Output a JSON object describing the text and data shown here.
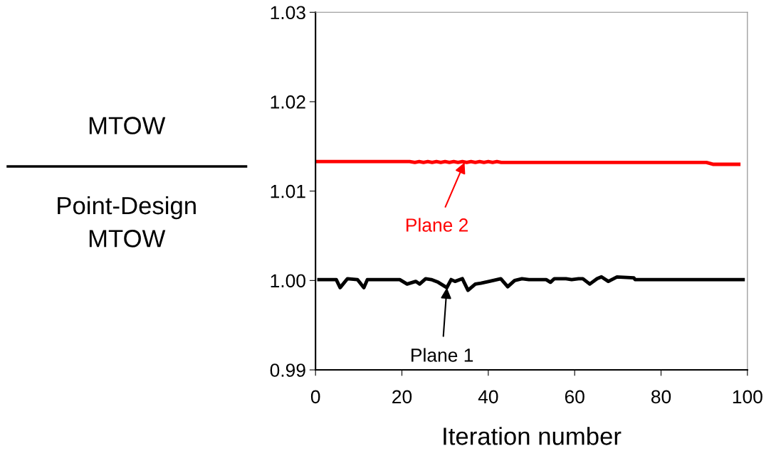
{
  "chart_data": {
    "type": "line",
    "xlabel": "Iteration number",
    "ylabel": "MTOW\nPoint-Design\nMTOW",
    "xlim": [
      0,
      100
    ],
    "xticks": [
      0,
      20,
      40,
      60,
      80,
      100
    ],
    "ylim": [
      0.99,
      1.03
    ],
    "yticks": [
      {
        "value": 0.99,
        "label": "0.99"
      },
      {
        "value": 1.0,
        "label": "1.00"
      },
      1.01,
      1.02,
      1.03
    ],
    "grid": false,
    "legend": false,
    "marker": "none",
    "series": [
      {
        "color": "#000000",
        "line_style": "solid",
        "x": [
          0.8,
          4.8,
          5.7,
          7.4,
          9.7,
          11.2,
          12.0,
          19.5,
          21.2,
          23.2,
          24.1,
          25.5,
          26.8,
          28.4,
          30.4,
          31.4,
          32.3,
          34.0,
          35.3,
          37.0,
          38.3,
          40.2,
          42.9,
          44.5,
          46.1,
          47.8,
          49.4,
          53.4,
          54.4,
          55.3,
          58.0,
          59.3,
          60.9,
          61.9,
          63.5,
          65.2,
          66.2,
          67.8,
          69.8,
          73.7,
          74.0,
          99.0
        ],
        "values": [
          1.0001,
          1.0001,
          0.9992,
          1.0002,
          1.0001,
          0.9992,
          1.0001,
          1.0001,
          0.9996,
          0.9999,
          0.9996,
          1.0002,
          1.0001,
          0.9998,
          0.9992,
          1.0001,
          0.9999,
          1.0002,
          0.9989,
          0.9996,
          0.9997,
          0.9999,
          1.0002,
          0.9993,
          1.0,
          1.0002,
          1.0001,
          1.0001,
          0.9998,
          1.0002,
          1.0002,
          1.0001,
          1.0002,
          1.0002,
          0.9996,
          1.0002,
          1.0004,
          0.9999,
          1.0004,
          1.0003,
          1.0001,
          1.0001
        ]
      },
      {
        "color": "#ff0000",
        "line_style": "solid",
        "x": [
          0,
          21.8,
          23,
          24,
          25,
          26,
          27,
          28,
          29,
          30,
          31,
          32,
          33,
          34,
          35,
          36,
          37,
          38,
          39,
          40,
          41,
          42,
          43,
          44.2,
          90.5,
          92,
          98
        ],
        "values": [
          1.0133,
          1.0133,
          1.0132,
          1.0133,
          1.0132,
          1.0133,
          1.0132,
          1.0133,
          1.0132,
          1.0133,
          1.0132,
          1.0133,
          1.0132,
          1.0133,
          1.0132,
          1.0133,
          1.0132,
          1.0133,
          1.0132,
          1.0133,
          1.0132,
          1.0133,
          1.0132,
          1.0132,
          1.0132,
          1.013,
          1.013
        ]
      }
    ],
    "annotations": [
      {
        "text": "Plane 1",
        "x": 30.4,
        "y": 0.9992
      },
      {
        "text": "Plane 2",
        "x": 34.5,
        "y": 1.0132
      }
    ]
  }
}
